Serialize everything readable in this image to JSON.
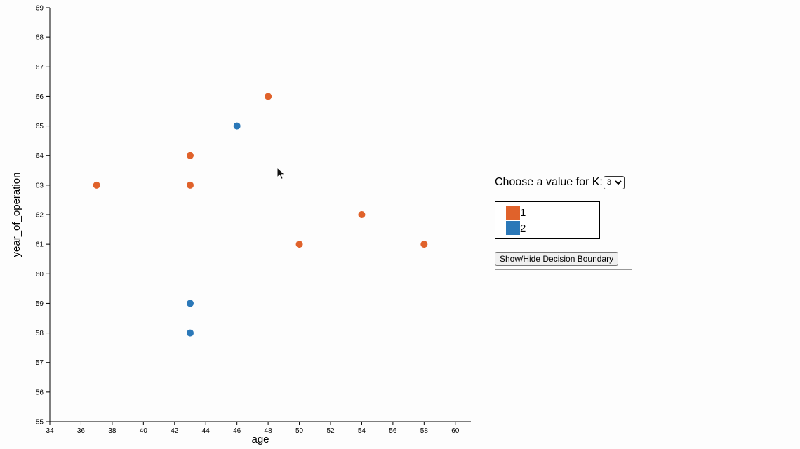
{
  "chart_data": {
    "type": "scatter",
    "xlabel": "age",
    "ylabel": "year_of_operation",
    "xlim": [
      34,
      61
    ],
    "ylim": [
      55,
      69
    ],
    "xticks": [
      34,
      36,
      38,
      40,
      42,
      44,
      46,
      48,
      50,
      52,
      54,
      56,
      58,
      60
    ],
    "yticks": [
      55,
      56,
      57,
      58,
      59,
      60,
      61,
      62,
      63,
      64,
      65,
      66,
      67,
      68,
      69
    ],
    "series": [
      {
        "name": "1",
        "color": "#e0622b",
        "points": [
          [
            37,
            63
          ],
          [
            43,
            64
          ],
          [
            43,
            63
          ],
          [
            48,
            66
          ],
          [
            50,
            61
          ],
          [
            54,
            62
          ],
          [
            58,
            61
          ]
        ]
      },
      {
        "name": "2",
        "color": "#2b78b8",
        "points": [
          [
            46,
            65
          ],
          [
            43,
            59
          ],
          [
            43,
            58
          ]
        ]
      }
    ]
  },
  "controls": {
    "k_label": "Choose a value for K:",
    "k_value": "3",
    "legend": [
      {
        "label": "1",
        "color": "#e0622b"
      },
      {
        "label": "2",
        "color": "#2b78b8"
      }
    ],
    "boundary_button": "Show/Hide Decision Boundary"
  }
}
